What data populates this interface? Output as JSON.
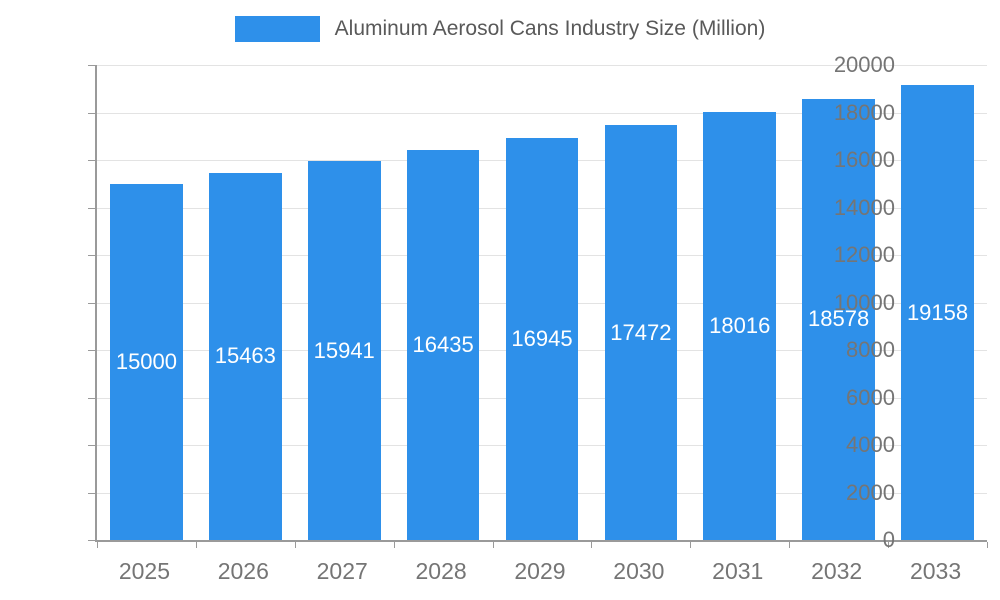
{
  "legend": {
    "title": "Aluminum Aerosol Cans Industry Size (Million)"
  },
  "chart_data": {
    "type": "bar",
    "title": "Aluminum Aerosol Cans Industry Size (Million)",
    "categories": [
      "2025",
      "2026",
      "2027",
      "2028",
      "2029",
      "2030",
      "2031",
      "2032",
      "2033"
    ],
    "values": [
      15000,
      15463,
      15941,
      16435,
      16945,
      17472,
      18016,
      18578,
      19158
    ],
    "xlabel": "",
    "ylabel": "",
    "ylim": [
      0,
      20000
    ],
    "ytick_step": 2000,
    "grid": true,
    "legend_position": "top",
    "colors": {
      "bar": "#2E90EA",
      "grid": "#E3E3E3",
      "axis": "#9A9A9A",
      "tick_text": "#757575",
      "value_label": "#FFFFFF",
      "legend_text": "#595959"
    }
  }
}
